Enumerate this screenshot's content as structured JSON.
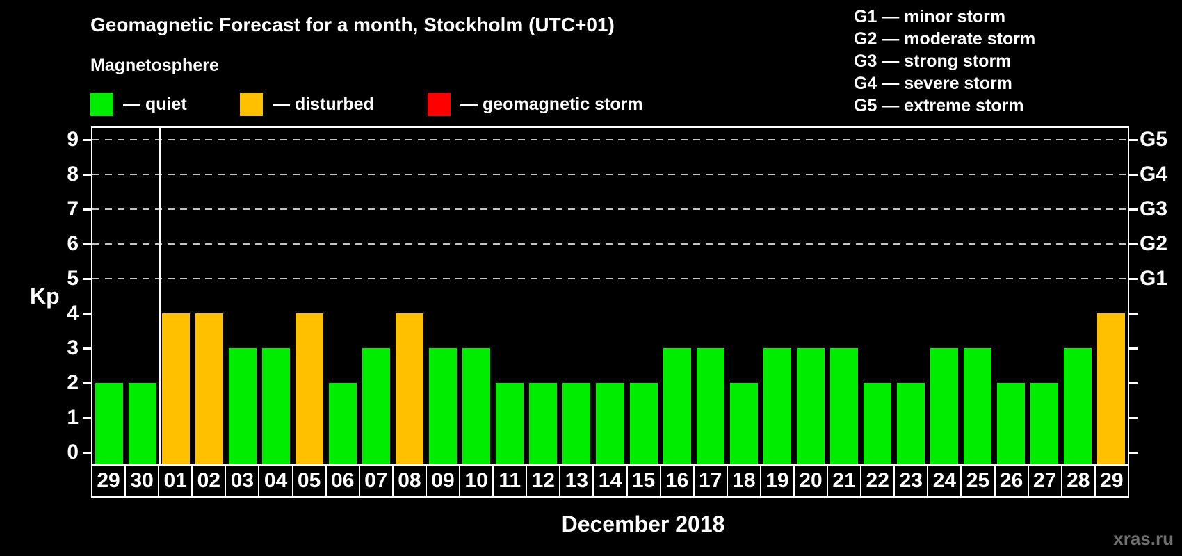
{
  "header": {
    "title": "Geomagnetic Forecast for a month, Stockholm (UTC+01)",
    "subtitle": "Magnetosphere"
  },
  "legend": {
    "items": [
      {
        "name": "quiet",
        "label": "— quiet",
        "color": "#00ED00"
      },
      {
        "name": "disturbed",
        "label": "— disturbed",
        "color": "#FFC000"
      },
      {
        "name": "geomagnetic-storm",
        "label": "— geomagnetic storm",
        "color": "#FF0000"
      }
    ]
  },
  "g_legend": {
    "items": [
      "G1 — minor storm",
      "G2 — moderate storm",
      "G3 — strong storm",
      "G4 — severe storm",
      "G5 — extreme storm"
    ]
  },
  "chart_data": {
    "type": "bar",
    "title": "Geomagnetic Forecast for a month, Stockholm (UTC+01)",
    "ylabel": "Kp",
    "xlabel": "December 2018",
    "ylim": [
      0,
      9
    ],
    "y_ticks": [
      0,
      1,
      2,
      3,
      4,
      5,
      6,
      7,
      8,
      9
    ],
    "gridlines_at": [
      5,
      6,
      7,
      8,
      9
    ],
    "grid": "dashed",
    "legend_position": "top-left",
    "right_axis_labels": [
      {
        "label": "G1",
        "kp": 5
      },
      {
        "label": "G2",
        "kp": 6
      },
      {
        "label": "G3",
        "kp": 7
      },
      {
        "label": "G4",
        "kp": 8
      },
      {
        "label": "G5",
        "kp": 9
      }
    ],
    "month_separator_after_index": 1,
    "categories": [
      "29",
      "30",
      "01",
      "02",
      "03",
      "04",
      "05",
      "06",
      "07",
      "08",
      "09",
      "10",
      "11",
      "12",
      "13",
      "14",
      "15",
      "16",
      "17",
      "18",
      "19",
      "20",
      "21",
      "22",
      "23",
      "24",
      "25",
      "26",
      "27",
      "28",
      "29"
    ],
    "values": [
      2,
      2,
      4,
      4,
      3,
      3,
      4,
      2,
      3,
      4,
      3,
      3,
      2,
      2,
      2,
      2,
      2,
      3,
      3,
      2,
      3,
      3,
      3,
      2,
      2,
      3,
      3,
      2,
      2,
      3,
      4
    ],
    "statuses": [
      "quiet",
      "quiet",
      "disturbed",
      "disturbed",
      "quiet",
      "quiet",
      "disturbed",
      "quiet",
      "quiet",
      "disturbed",
      "quiet",
      "quiet",
      "quiet",
      "quiet",
      "quiet",
      "quiet",
      "quiet",
      "quiet",
      "quiet",
      "quiet",
      "quiet",
      "quiet",
      "quiet",
      "quiet",
      "quiet",
      "quiet",
      "quiet",
      "quiet",
      "quiet",
      "quiet",
      "disturbed"
    ],
    "colors_by_status": {
      "quiet": "#00ED00",
      "disturbed": "#FFC000",
      "geomagnetic-storm": "#FF0000"
    }
  },
  "footer": {
    "month_label": "December 2018",
    "watermark": "xras.ru"
  }
}
